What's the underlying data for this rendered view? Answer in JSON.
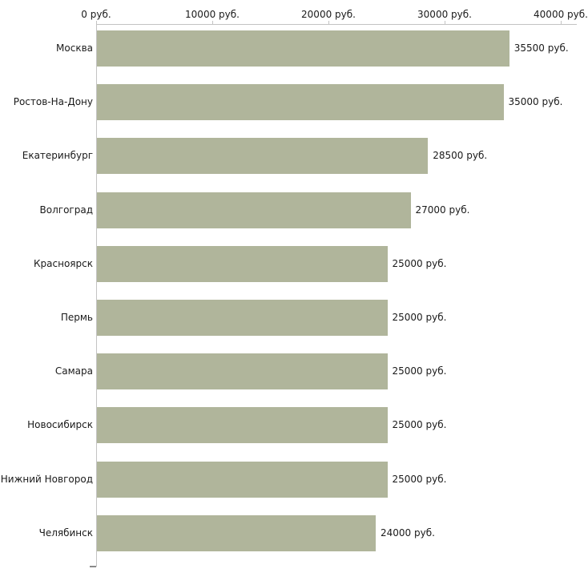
{
  "chart_data": {
    "type": "bar",
    "orientation": "horizontal",
    "categories": [
      "Москва",
      "Ростов-На-Дону",
      "Екатеринбург",
      "Волгоград",
      "Красноярск",
      "Пермь",
      "Самара",
      "Новосибирск",
      "Нижний Новгород",
      "Челябинск"
    ],
    "values": [
      35500,
      35000,
      28500,
      27000,
      25000,
      25000,
      25000,
      25000,
      25000,
      24000
    ],
    "value_labels": [
      "35500 руб.",
      "35000 руб.",
      "28500 руб.",
      "27000 руб.",
      "25000 руб.",
      "25000 руб.",
      "25000 руб.",
      "25000 руб.",
      "25000 руб.",
      "24000 руб."
    ],
    "xlim": [
      0,
      40000
    ],
    "x_ticks": [
      0,
      10000,
      20000,
      30000,
      40000
    ],
    "x_tick_labels": [
      "0 руб.",
      "10000 руб.",
      "20000 руб.",
      "30000 руб.",
      "40000 руб."
    ],
    "bar_color": "#b0b59b",
    "axis_color": "#c3c3c3",
    "text_color": "#1a1a1a",
    "axis_position": "top",
    "grid": false,
    "legend": false
  }
}
